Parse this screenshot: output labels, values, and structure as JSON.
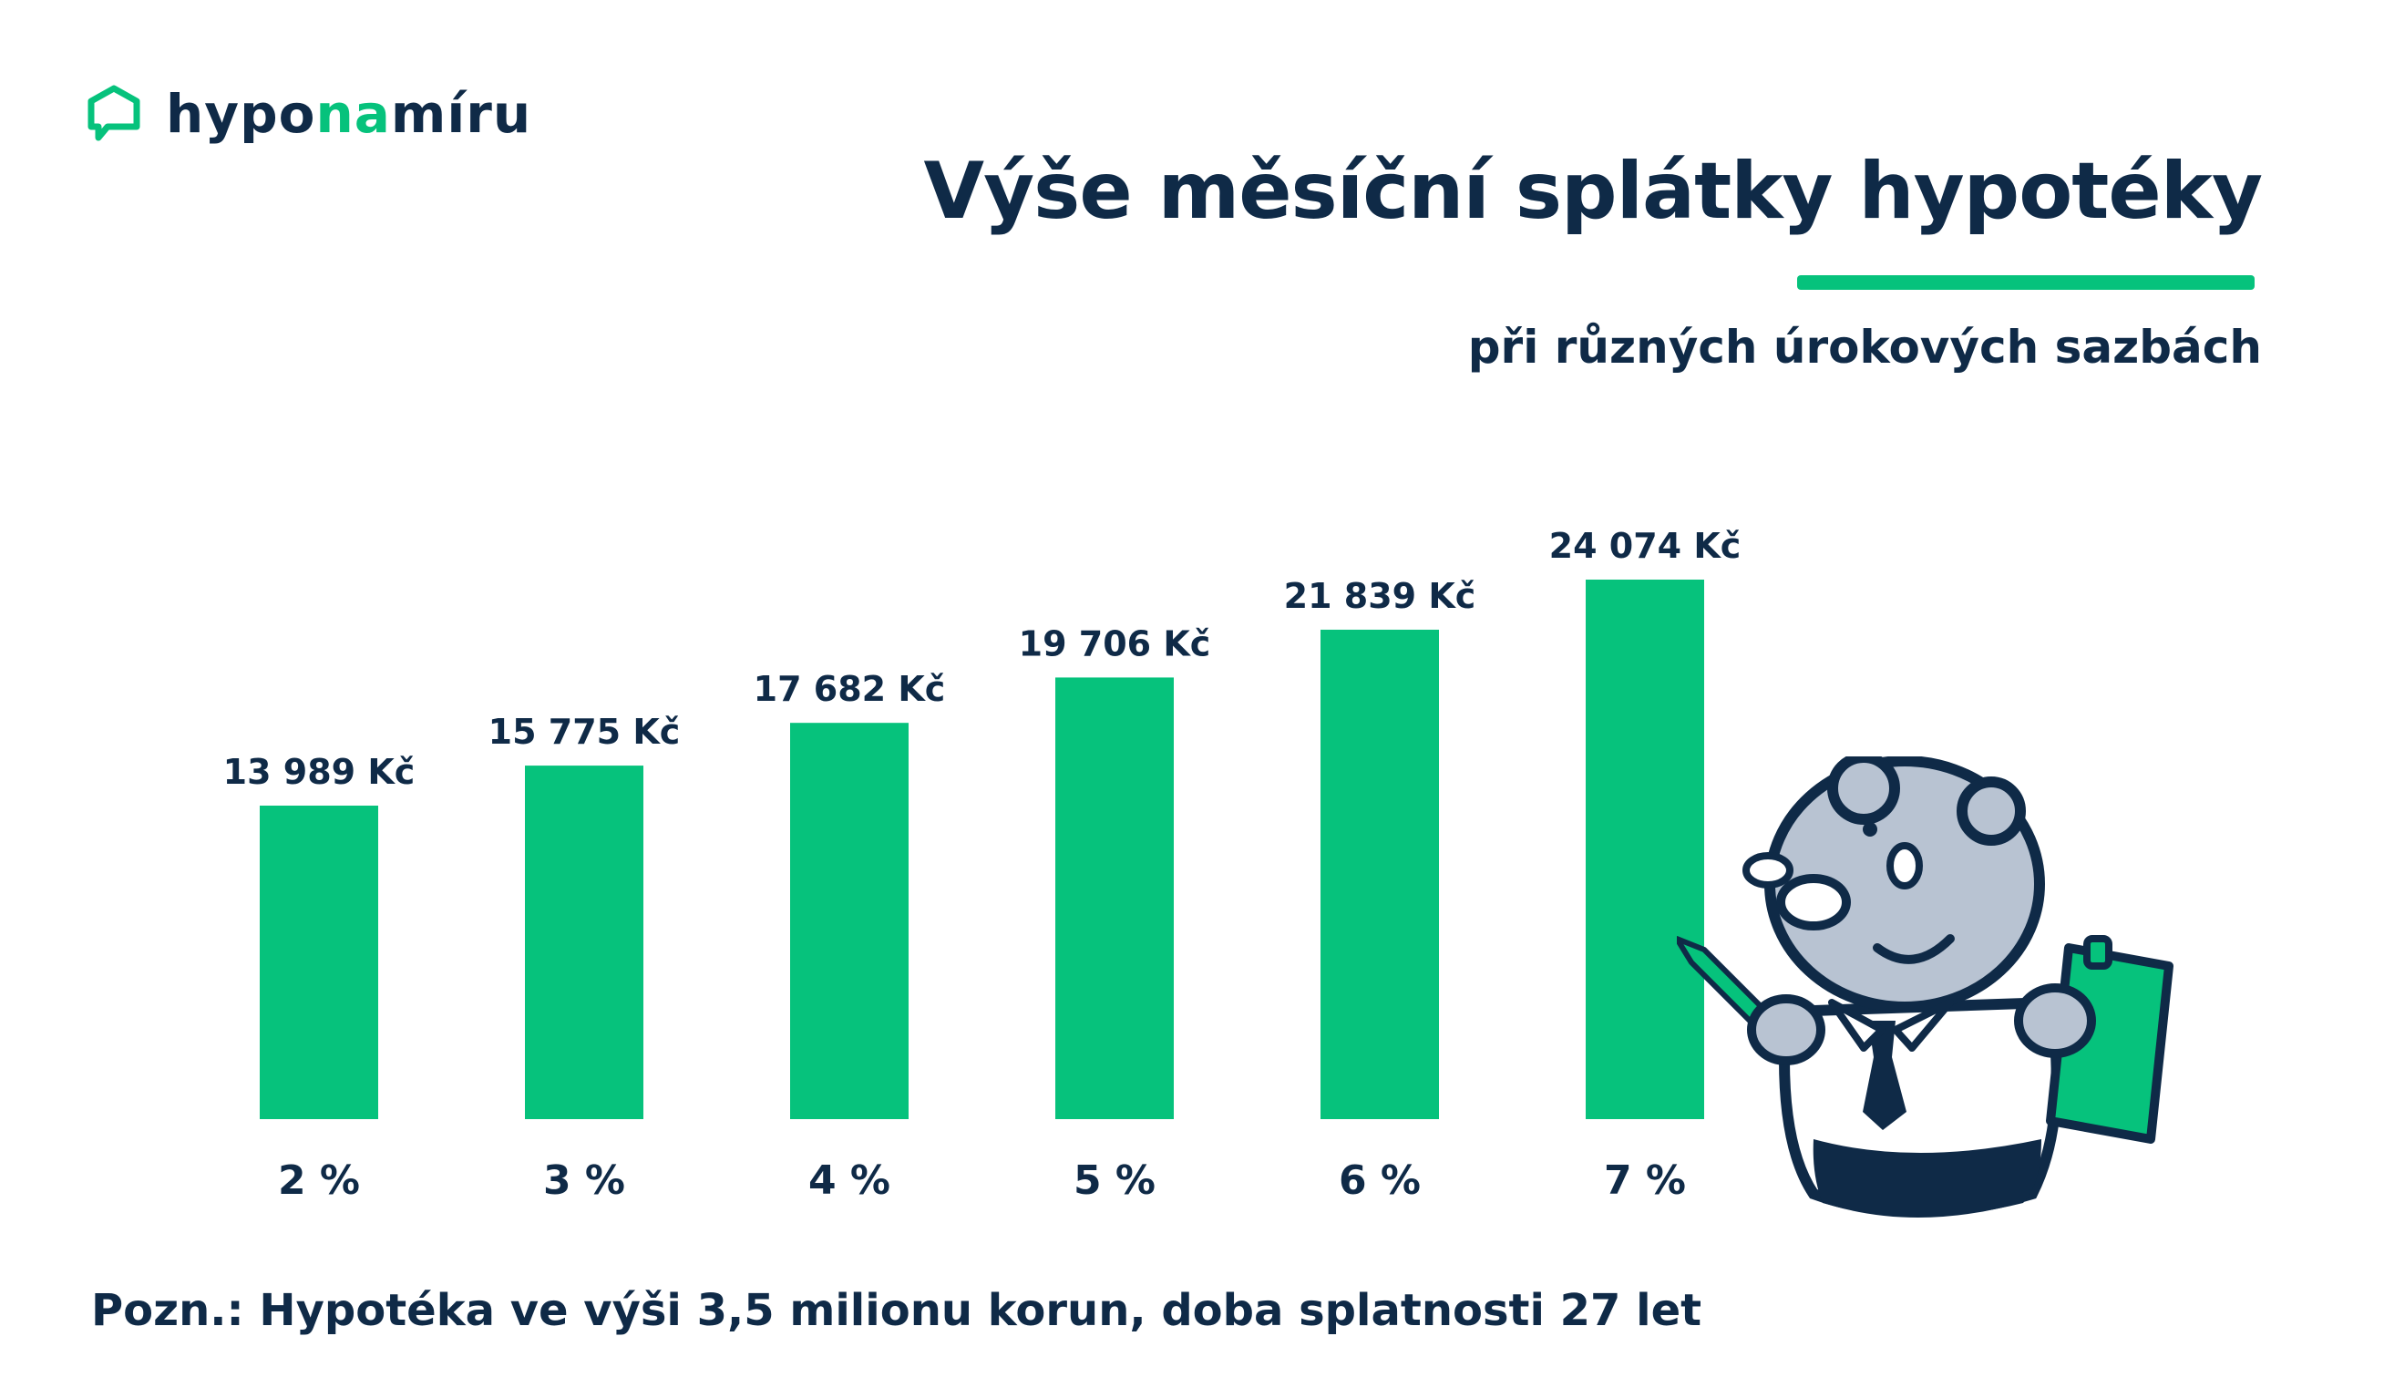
{
  "logo": {
    "part1": "hypo",
    "part2": "na",
    "part3": "míru"
  },
  "header": {
    "title": "Výše měsíční splátky hypotéky",
    "subtitle": "při různých úrokových sazbách"
  },
  "note": "Pozn.: Hypotéka ve výši 3,5 milionu korun, doba splatnosti 27 let",
  "colors": {
    "bar": "#06c27c",
    "text": "#0f2a47",
    "accent": "#06c27c"
  },
  "chart_data": {
    "type": "bar",
    "categories": [
      "2 %",
      "3 %",
      "4 %",
      "5 %",
      "6 %",
      "7 %"
    ],
    "values": [
      13989,
      15775,
      17682,
      19706,
      21839,
      24074
    ],
    "value_labels": [
      "13 989 Kč",
      "15 775 Kč",
      "17 682 Kč",
      "19 706 Kč",
      "21 839 Kč",
      "24 074 Kč"
    ],
    "title": "Výše měsíční splátky hypotéky",
    "subtitle": "při různých úrokových sazbách",
    "ylim": [
      0,
      24074
    ],
    "grid": false,
    "legend": "none"
  }
}
